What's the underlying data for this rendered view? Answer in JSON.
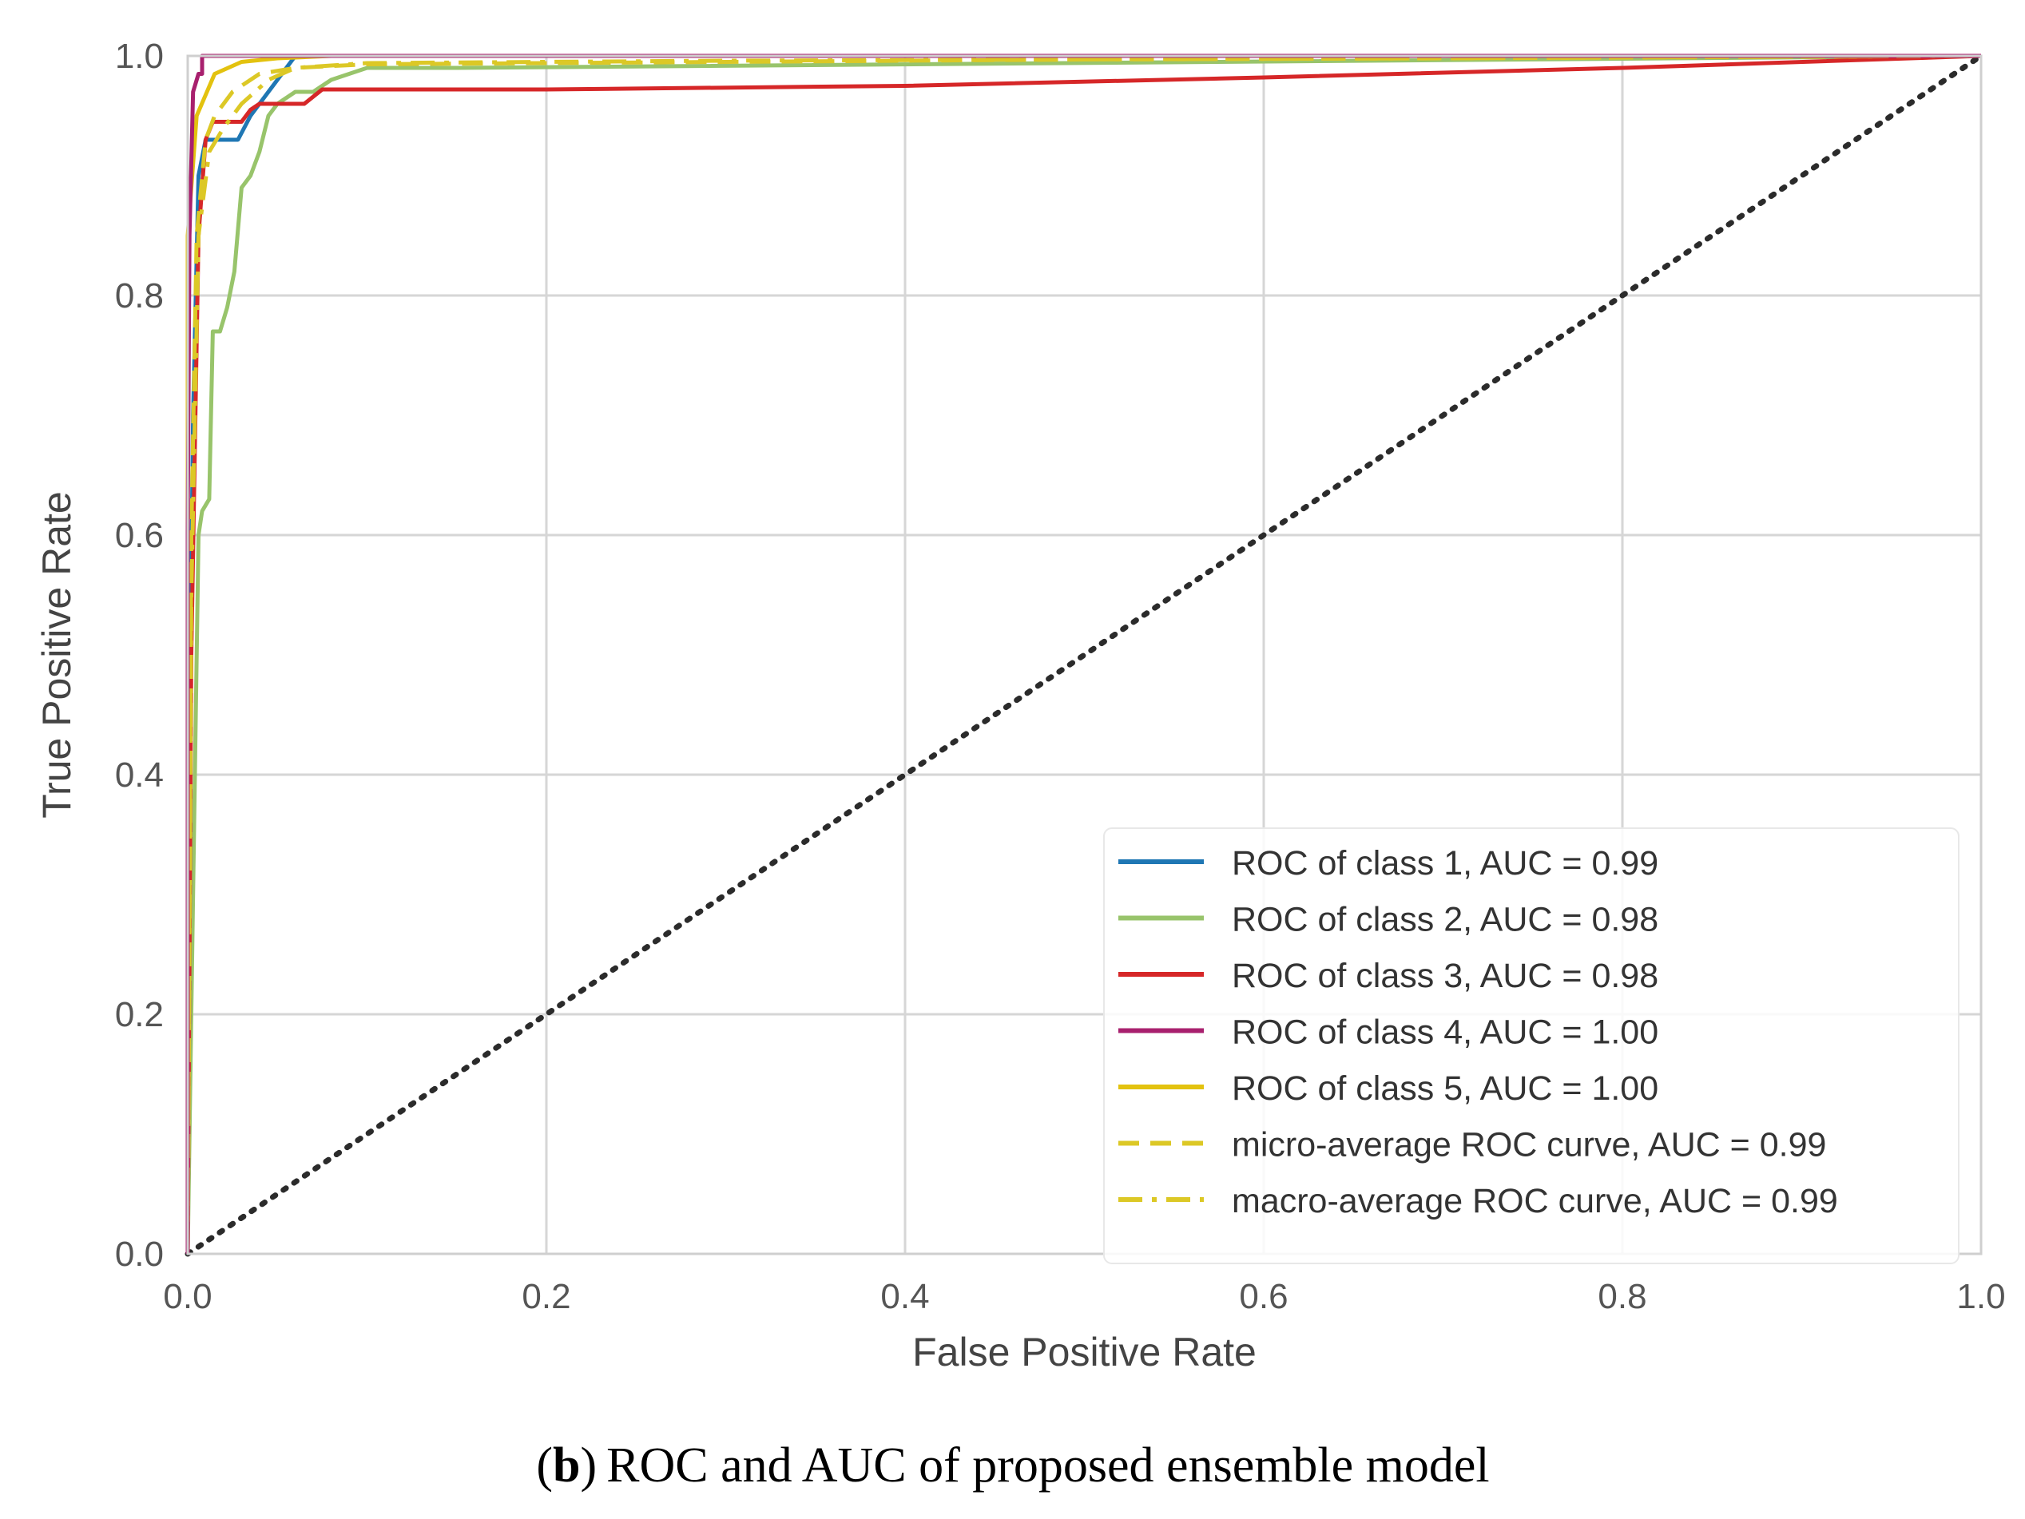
{
  "chart_data": {
    "type": "line",
    "title": "",
    "xlabel": "False Positive Rate",
    "ylabel": "True Positive Rate",
    "xlim": [
      0.0,
      1.0
    ],
    "ylim": [
      0.0,
      1.0
    ],
    "xticks": [
      0.0,
      0.2,
      0.4,
      0.6,
      0.8,
      1.0
    ],
    "yticks": [
      0.0,
      0.2,
      0.4,
      0.6,
      0.8,
      1.0
    ],
    "xtick_labels": [
      "0.0",
      "0.2",
      "0.4",
      "0.6",
      "0.8",
      "1.0"
    ],
    "ytick_labels": [
      "0.0",
      "0.2",
      "0.4",
      "0.6",
      "0.8",
      "1.0"
    ],
    "grid": true,
    "legend_position": "lower-right",
    "series": [
      {
        "name": "ROC of class 1, AUC = 0.99",
        "color": "#1f77b4",
        "style": "solid",
        "x": [
          0.0,
          0.0,
          0.003,
          0.006,
          0.01,
          0.02,
          0.028,
          0.035,
          0.045,
          0.06,
          1.0
        ],
        "y": [
          0.0,
          0.3,
          0.7,
          0.9,
          0.93,
          0.93,
          0.93,
          0.95,
          0.97,
          1.0,
          1.0
        ]
      },
      {
        "name": "ROC of class 2, AUC = 0.98",
        "color": "#98c46b",
        "style": "solid",
        "x": [
          0.0,
          0.003,
          0.006,
          0.008,
          0.012,
          0.014,
          0.018,
          0.022,
          0.026,
          0.03,
          0.035,
          0.04,
          0.045,
          0.05,
          0.06,
          0.065,
          0.07,
          0.08,
          0.1,
          0.15,
          1.0
        ],
        "y": [
          0.0,
          0.3,
          0.6,
          0.62,
          0.63,
          0.77,
          0.77,
          0.79,
          0.82,
          0.89,
          0.9,
          0.92,
          0.95,
          0.96,
          0.97,
          0.97,
          0.97,
          0.98,
          0.99,
          0.99,
          1.0
        ]
      },
      {
        "name": "ROC of class 3, AUC = 0.98",
        "color": "#d62728",
        "style": "solid",
        "x": [
          0.0,
          0.002,
          0.006,
          0.01,
          0.014,
          0.02,
          0.03,
          0.035,
          0.04,
          0.05,
          0.055,
          0.065,
          0.075,
          0.1,
          0.2,
          0.4,
          0.6,
          0.8,
          1.0
        ],
        "y": [
          0.0,
          0.5,
          0.85,
          0.93,
          0.945,
          0.945,
          0.945,
          0.955,
          0.96,
          0.96,
          0.96,
          0.96,
          0.972,
          0.972,
          0.972,
          0.975,
          0.982,
          0.99,
          1.0
        ]
      },
      {
        "name": "ROC of class 4, AUC = 1.00",
        "color": "#a8206e",
        "style": "solid",
        "x": [
          0.0,
          0.0,
          0.001,
          0.003,
          0.006,
          0.008,
          0.008,
          1.0
        ],
        "y": [
          0.0,
          0.6,
          0.85,
          0.97,
          0.985,
          0.985,
          1.0,
          1.0
        ]
      },
      {
        "name": "ROC of class 5, AUC = 1.00",
        "color": "#e3c20f",
        "style": "solid",
        "x": [
          0.0,
          0.0,
          0.005,
          0.015,
          0.03,
          0.05,
          0.08,
          1.0
        ],
        "y": [
          0.0,
          0.85,
          0.95,
          0.985,
          0.995,
          0.998,
          1.0,
          1.0
        ]
      },
      {
        "name": "micro-average ROC curve, AUC = 0.99",
        "color": "#dcc826",
        "style": "dashed",
        "x": [
          0.0,
          0.002,
          0.005,
          0.01,
          0.015,
          0.025,
          0.04,
          0.06,
          0.1,
          0.3,
          0.5,
          0.7,
          1.0
        ],
        "y": [
          0.0,
          0.6,
          0.85,
          0.93,
          0.95,
          0.97,
          0.985,
          0.99,
          0.993,
          0.995,
          0.997,
          0.998,
          1.0
        ]
      },
      {
        "name": "macro-average ROC curve, AUC = 0.99",
        "color": "#dcc826",
        "style": "dashdot",
        "x": [
          0.0,
          0.002,
          0.006,
          0.012,
          0.02,
          0.03,
          0.045,
          0.06,
          0.1,
          0.3,
          0.5,
          0.7,
          1.0
        ],
        "y": [
          0.0,
          0.55,
          0.85,
          0.92,
          0.94,
          0.96,
          0.98,
          0.99,
          0.994,
          0.996,
          0.997,
          0.998,
          1.0
        ]
      },
      {
        "name": "chance",
        "color": "#2b2b2b",
        "style": "dotted",
        "x": [
          0.0,
          1.0
        ],
        "y": [
          0.0,
          1.0
        ],
        "in_legend": false
      }
    ]
  },
  "caption": {
    "label": "(b)",
    "open_paren": "(",
    "letter": "b",
    "close_paren": ")",
    "text": "ROC and AUC of proposed ensemble model"
  }
}
